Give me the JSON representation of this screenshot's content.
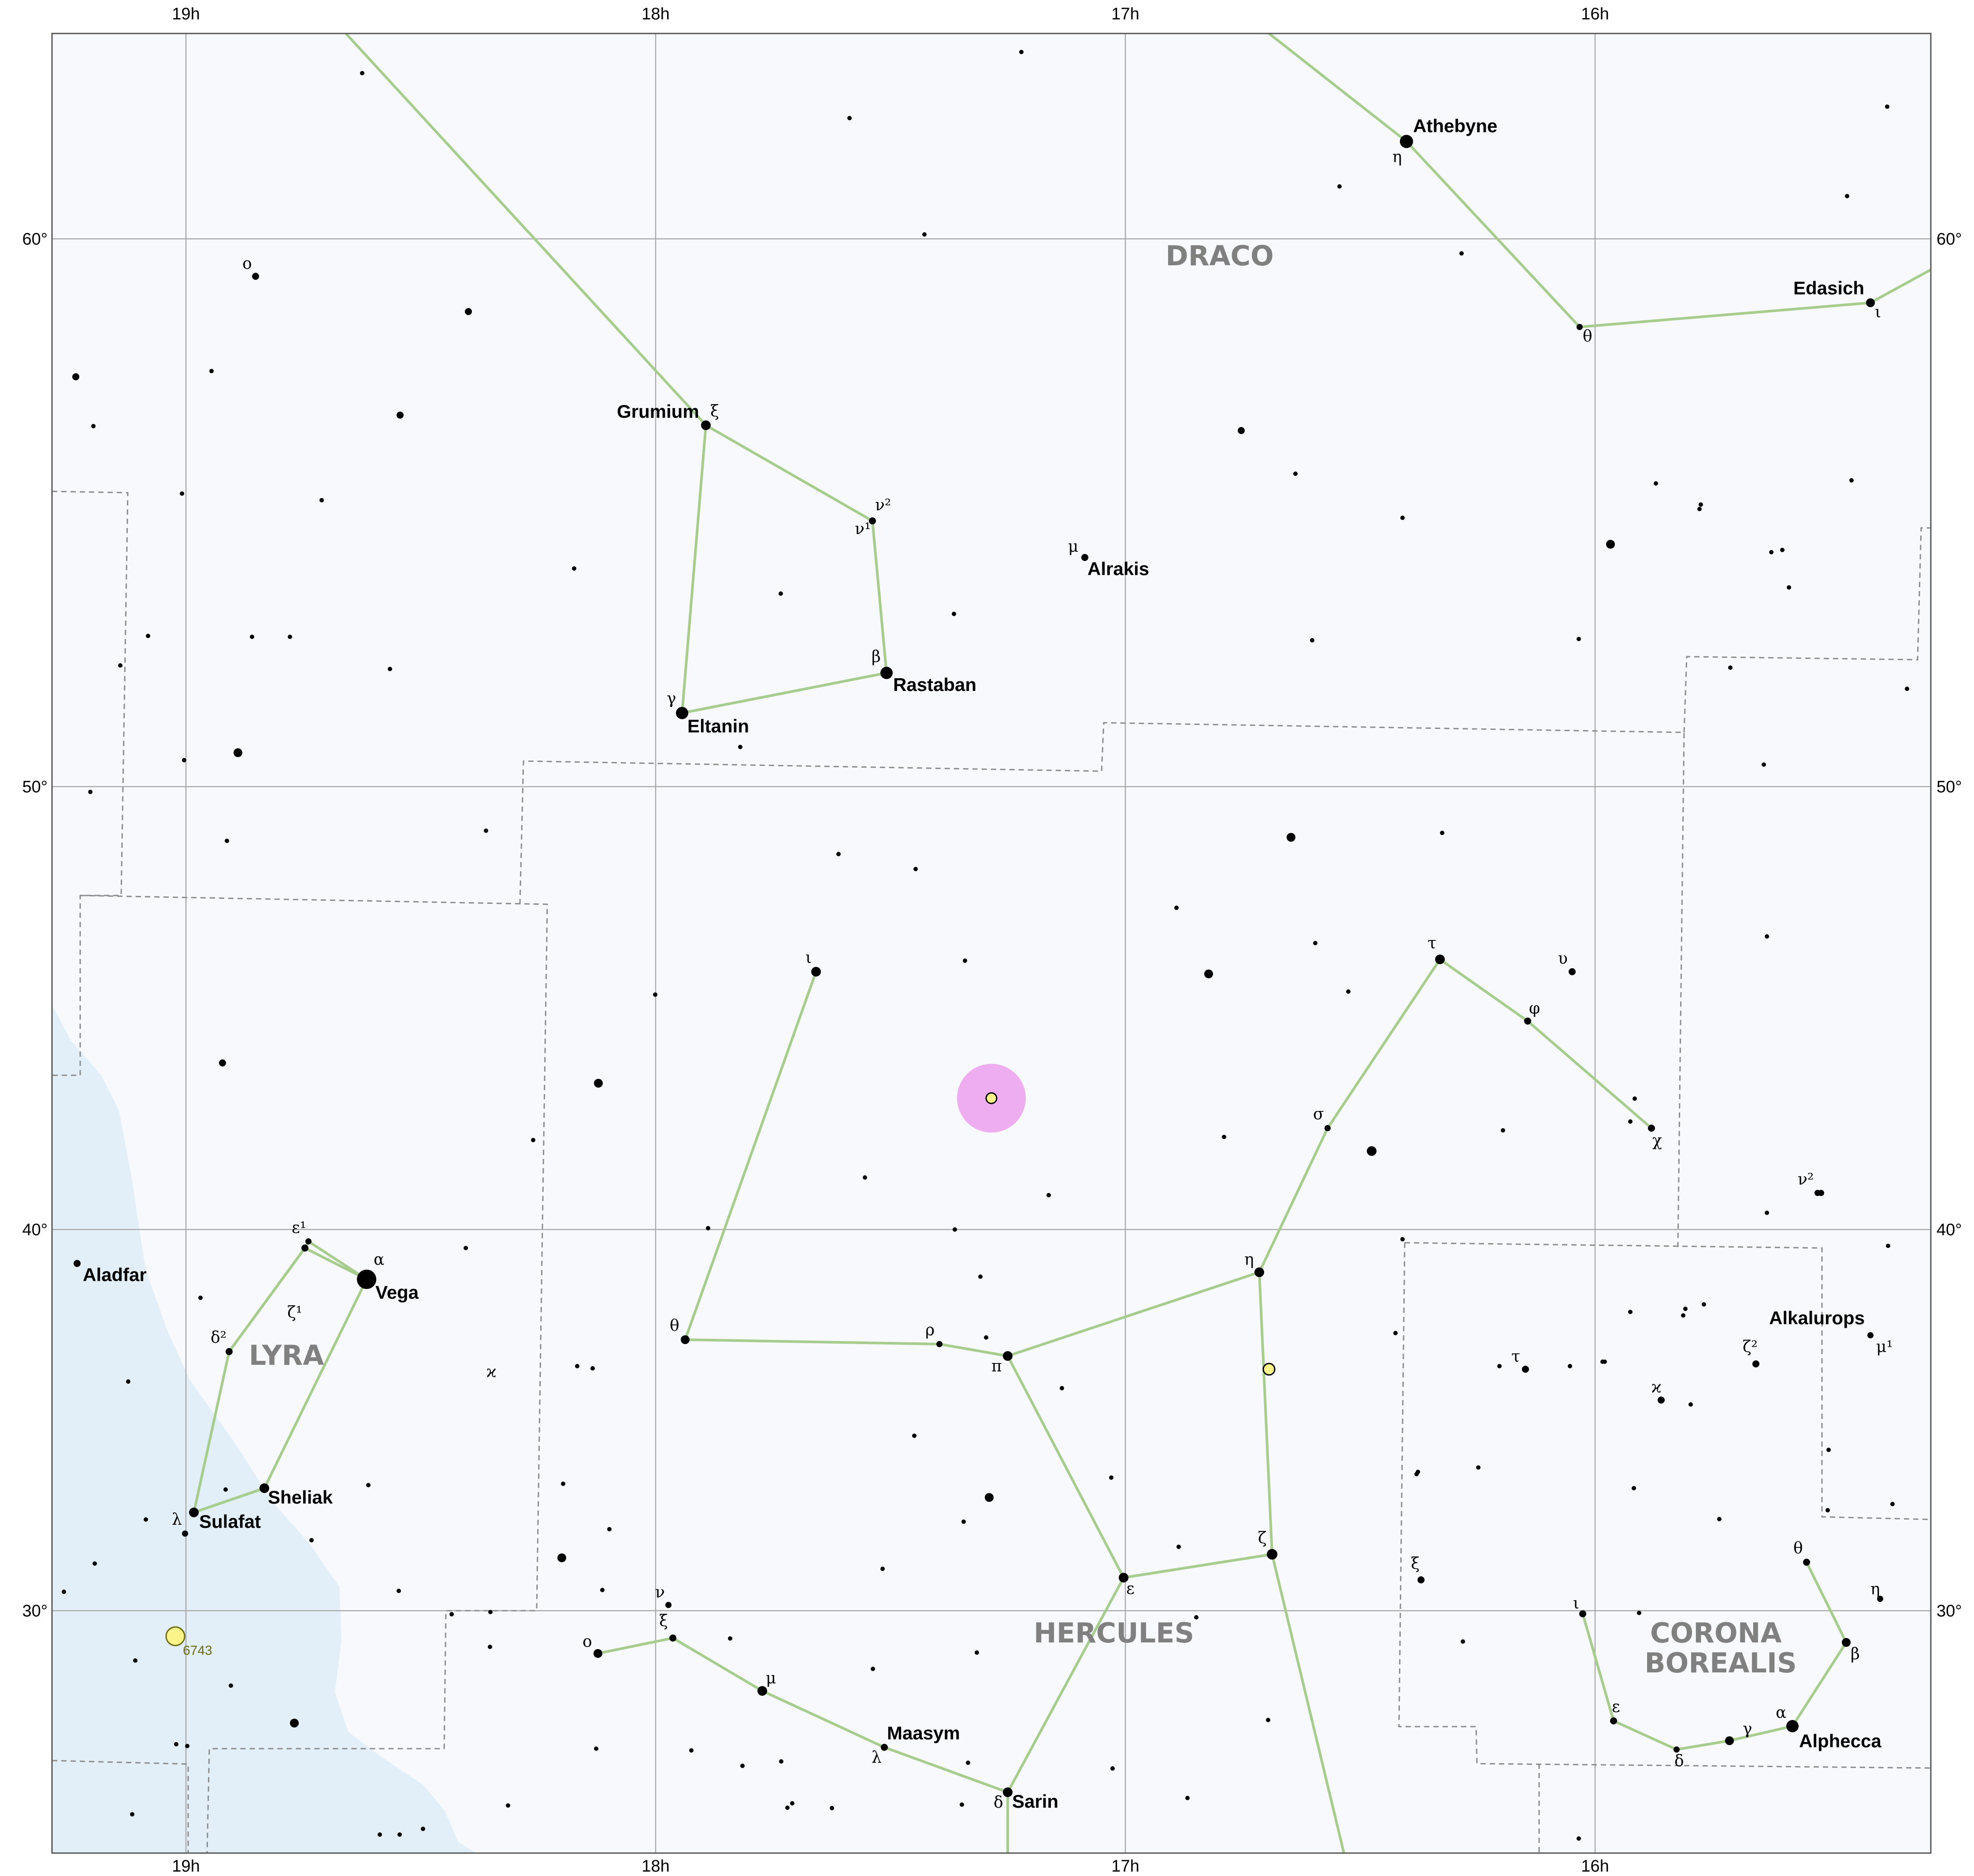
{
  "map": {
    "colors": {
      "background": "#f7f9fc",
      "milky_way": "#e2eff9",
      "grid": "#a9a9a9",
      "constellation_line": "#a6cc8e",
      "boundary": "#8a8a8a",
      "star": "#000000",
      "cluster_fill": "#fbf48a",
      "highlight": "#eeadee"
    },
    "ra_labels": [
      "19h",
      "18h",
      "17h",
      "16h"
    ],
    "dec_labels": [
      "60°",
      "50°",
      "40°",
      "30°"
    ],
    "constellations": [
      {
        "id": "draco",
        "name": "DRACO"
      },
      {
        "id": "lyra",
        "name": "LYRA"
      },
      {
        "id": "hercules",
        "name": "HERCULES"
      },
      {
        "id": "corona-borealis",
        "name": "CORONA BOREALIS"
      }
    ],
    "named_stars": [
      {
        "id": "athebyne",
        "name": "Athebyne"
      },
      {
        "id": "edasich",
        "name": "Edasich"
      },
      {
        "id": "grumium",
        "name": "Grumium"
      },
      {
        "id": "alrakis",
        "name": "Alrakis"
      },
      {
        "id": "rastaban",
        "name": "Rastaban"
      },
      {
        "id": "eltanin",
        "name": "Eltanin"
      },
      {
        "id": "aladfar",
        "name": "Aladfar"
      },
      {
        "id": "vega",
        "name": "Vega"
      },
      {
        "id": "sheliak",
        "name": "Sheliak"
      },
      {
        "id": "sulafat",
        "name": "Sulafat"
      },
      {
        "id": "maasym",
        "name": "Maasym"
      },
      {
        "id": "sarin",
        "name": "Sarin"
      },
      {
        "id": "alkalurops",
        "name": "Alkalurops"
      },
      {
        "id": "alphecca",
        "name": "Alphecca"
      }
    ],
    "greek_letters": [
      "η",
      "θ",
      "ι",
      "ξ",
      "ν²",
      "ν¹",
      "μ",
      "β",
      "γ",
      "ο",
      "ε¹",
      "α",
      "ζ¹",
      "δ²",
      "ϰ",
      "λ",
      "ι",
      "θ",
      "ρ",
      "π",
      "η",
      "τ",
      "υ",
      "φ",
      "σ",
      "χ",
      "ν²",
      "ζ",
      "ε",
      "ν",
      "ξ",
      "ο",
      "μ",
      "λ",
      "δ",
      "ξ",
      "τ",
      "ϰ",
      "ζ²",
      "μ¹",
      "θ",
      "η",
      "β",
      "ι",
      "ε",
      "δ",
      "γ",
      "α"
    ],
    "deep_sky": [
      {
        "id": "ngc6743",
        "label": "6743"
      }
    ]
  }
}
